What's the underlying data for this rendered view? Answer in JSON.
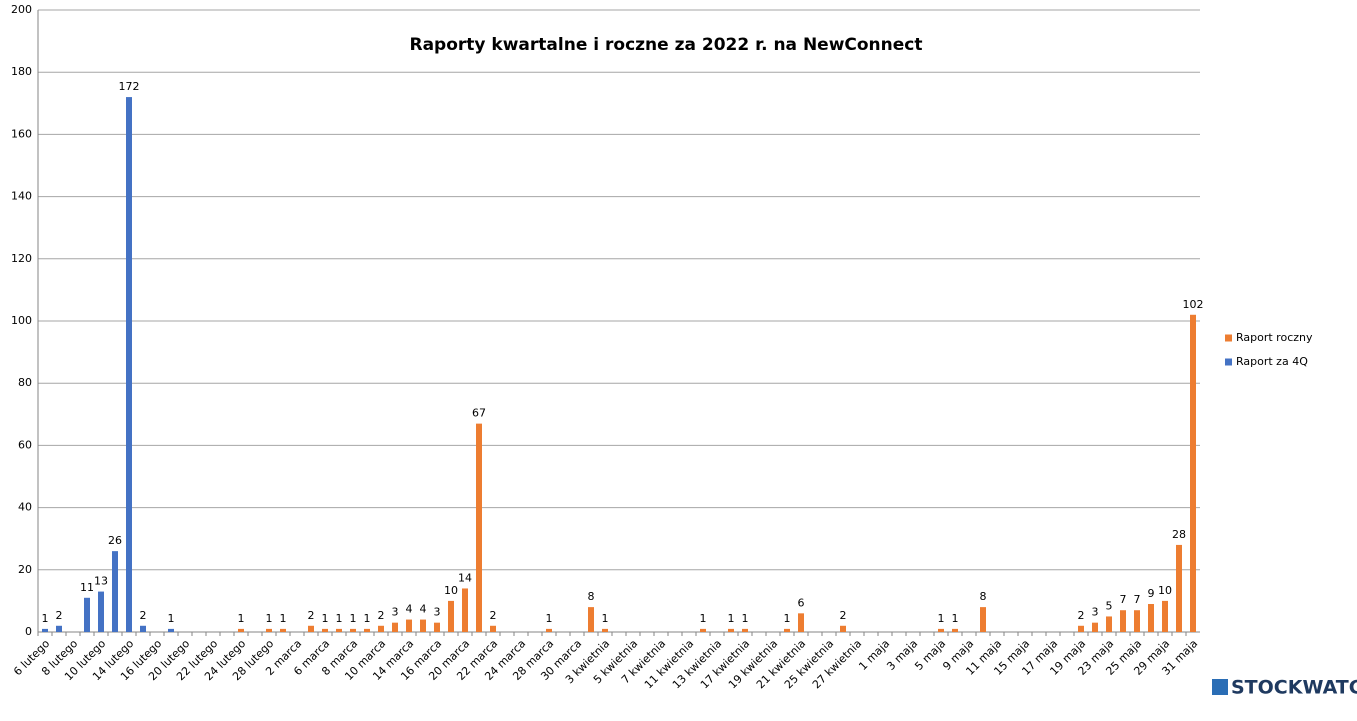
{
  "chart_data": {
    "type": "bar",
    "title": "Raporty kwartalne i roczne za 2022 r. na NewConnect",
    "watermark": "STOCKWATCH",
    "categories": [
      "6 lutego",
      null,
      "8 lutego",
      null,
      "10 lutego",
      null,
      "14 lutego",
      null,
      "16 lutego",
      null,
      "20 lutego",
      null,
      "22 lutego",
      null,
      "24 lutego",
      null,
      "28 lutego",
      null,
      "2 marca",
      null,
      "6 marca",
      null,
      "8 marca",
      null,
      "10 marca",
      null,
      "14 marca",
      null,
      "16 marca",
      null,
      "20 marca",
      null,
      "22 marca",
      null,
      "24 marca",
      null,
      "28 marca",
      null,
      "30 marca",
      null,
      "3 kwietnia",
      null,
      "5 kwietnia",
      null,
      "7 kwietnia",
      null,
      "11 kwietnia",
      null,
      "13 kwietnia",
      null,
      "17 kwietnia",
      null,
      "19 kwietnia",
      null,
      "21 kwietnia",
      null,
      "25 kwietnia",
      null,
      "27 kwietnia",
      null,
      "1 maja",
      null,
      "3 maja",
      null,
      "5 maja",
      null,
      "9 maja",
      null,
      "11 maja",
      null,
      "15 maja",
      null,
      "17 maja",
      null,
      "19 maja",
      null,
      "23 maja",
      null,
      "25 maja",
      null,
      "29 maja",
      null,
      "31 maja"
    ],
    "series": [
      {
        "name": "Raport roczny",
        "color": "#ed7d31",
        "values": [
          null,
          null,
          null,
          null,
          null,
          null,
          null,
          null,
          null,
          null,
          null,
          null,
          null,
          null,
          1,
          null,
          1,
          1,
          null,
          2,
          1,
          1,
          1,
          1,
          2,
          3,
          4,
          4,
          3,
          10,
          14,
          67,
          2,
          null,
          null,
          null,
          1,
          null,
          null,
          8,
          1,
          null,
          null,
          null,
          null,
          null,
          null,
          1,
          null,
          1,
          1,
          null,
          null,
          1,
          6,
          null,
          null,
          2,
          null,
          null,
          null,
          null,
          null,
          null,
          1,
          1,
          null,
          8,
          null,
          null,
          null,
          null,
          null,
          null,
          2,
          3,
          5,
          7,
          7,
          9,
          10,
          28,
          102
        ]
      },
      {
        "name": "Raport za 4Q",
        "color": "#4472c4",
        "values": [
          1,
          2,
          null,
          11,
          13,
          26,
          172,
          2,
          null,
          1,
          null,
          null,
          null,
          null,
          null,
          null,
          null,
          null,
          null,
          null,
          null,
          null,
          null,
          null,
          null,
          null,
          null,
          null,
          null,
          null,
          null,
          null,
          null,
          null,
          null,
          null,
          null,
          null,
          null,
          null,
          null,
          null,
          null,
          null,
          null,
          null,
          null,
          null,
          null,
          null,
          null,
          null,
          null,
          null,
          null,
          null,
          null,
          null,
          null,
          null,
          null,
          null,
          null,
          null,
          null,
          null,
          null,
          null,
          null,
          null,
          null,
          null,
          null,
          null,
          null,
          null,
          null,
          null,
          null,
          null,
          null,
          null,
          null
        ]
      }
    ],
    "ylim": [
      0,
      200
    ],
    "yticks": [
      0,
      20,
      40,
      60,
      80,
      100,
      120,
      140,
      160,
      180,
      200
    ],
    "grid": true,
    "legend": "right"
  }
}
